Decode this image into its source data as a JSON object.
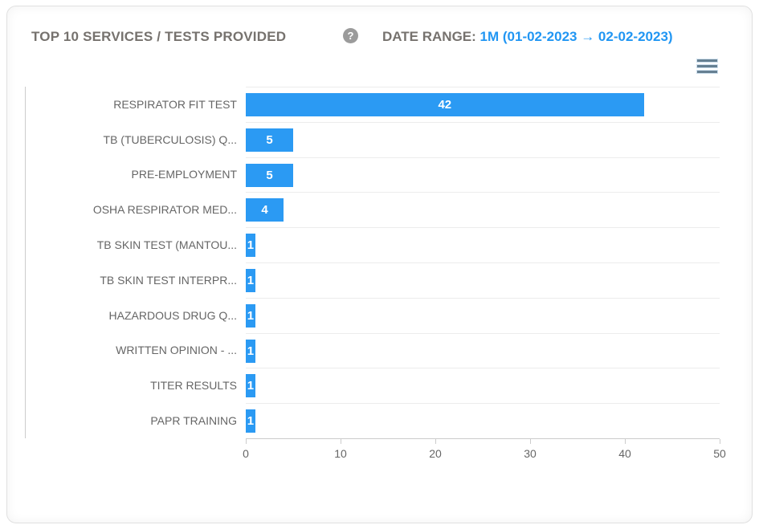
{
  "header": {
    "title": "TOP 10 SERVICES / TESTS PROVIDED",
    "help_glyph": "?",
    "date_range_label": "DATE RANGE:",
    "date_range_value": "1M (01-02-2023 → 02-02-2023)"
  },
  "toolbar": {
    "menu_icon": "hamburger-menu"
  },
  "colors": {
    "bar_blue": "#2b9af3",
    "accent_blue": "#2196f3",
    "title_gray": "#76726e",
    "axis_text_gray": "#666666",
    "gridline": "#ececec",
    "axis_line": "#cccccc",
    "value_label": "#ffffff"
  },
  "chart_data": {
    "type": "bar",
    "orientation": "horizontal",
    "title": "TOP 10 SERVICES / TESTS PROVIDED",
    "categories": [
      "RESPIRATOR FIT TEST",
      "TB (TUBERCULOSIS) Q...",
      "PRE-EMPLOYMENT",
      "OSHA RESPIRATOR MED...",
      "TB SKIN TEST (MANTOU...",
      "TB SKIN TEST INTERPR...",
      "HAZARDOUS DRUG Q...",
      "WRITTEN OPINION - ...",
      "TITER RESULTS",
      "PAPR TRAINING"
    ],
    "values": [
      42,
      5,
      5,
      4,
      1,
      1,
      1,
      1,
      1,
      1
    ],
    "xlim": [
      0,
      50
    ],
    "x_ticks": [
      0,
      10,
      20,
      30,
      40,
      50
    ],
    "xlabel": "",
    "ylabel": "",
    "legend": "none",
    "grid": "horizontal row separators only",
    "bar_color": "#2b9af3",
    "value_labels_inside_bars": true
  }
}
